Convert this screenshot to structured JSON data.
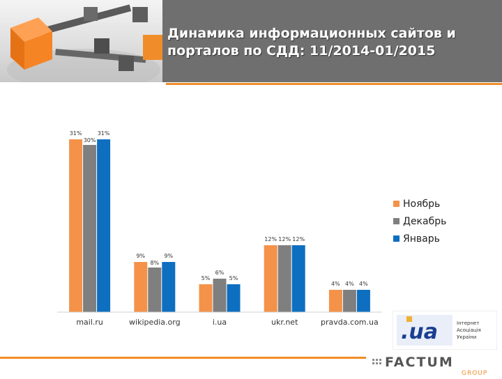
{
  "header": {
    "title_line1": "Динамика информационных сайтов и",
    "title_line2": "порталов по СДД: 11/2014-01/2015"
  },
  "colors": {
    "november": "#f4924a",
    "december": "#7f7f7f",
    "january": "#0e6fc0",
    "accent": "#f08d2a",
    "header_bg": "#6f6f6f"
  },
  "legend": [
    {
      "label": "Ноябрь",
      "color": "#f4924a"
    },
    {
      "label": "Декабрь",
      "color": "#7f7f7f"
    },
    {
      "label": "Январь",
      "color": "#0e6fc0"
    }
  ],
  "chart_data": {
    "type": "bar",
    "categories": [
      "mail.ru",
      "wikipedia.org",
      "i.ua",
      "ukr.net",
      "pravda.com.ua"
    ],
    "series": [
      {
        "name": "Ноябрь",
        "values": [
          31,
          9,
          5,
          12,
          4
        ],
        "labels": [
          "31%",
          "9%",
          "5%",
          "12%",
          "4%"
        ]
      },
      {
        "name": "Декабрь",
        "values": [
          30,
          8,
          6,
          12,
          4
        ],
        "labels": [
          "30%",
          "8%",
          "6%",
          "12%",
          "4%"
        ]
      },
      {
        "name": "Январь",
        "values": [
          31,
          9,
          5,
          12,
          4
        ],
        "labels": [
          "31%",
          "9%",
          "5%",
          "12%",
          "4%"
        ]
      }
    ],
    "ylim": [
      0,
      35
    ],
    "grid": false,
    "legend_position": "right"
  },
  "logos": {
    "uia_text_1": "Інтернет",
    "uia_text_2": "Асоціація",
    "uia_text_3": "України",
    "factum_text": "FACTUM",
    "factum_sub": "GROUP"
  }
}
